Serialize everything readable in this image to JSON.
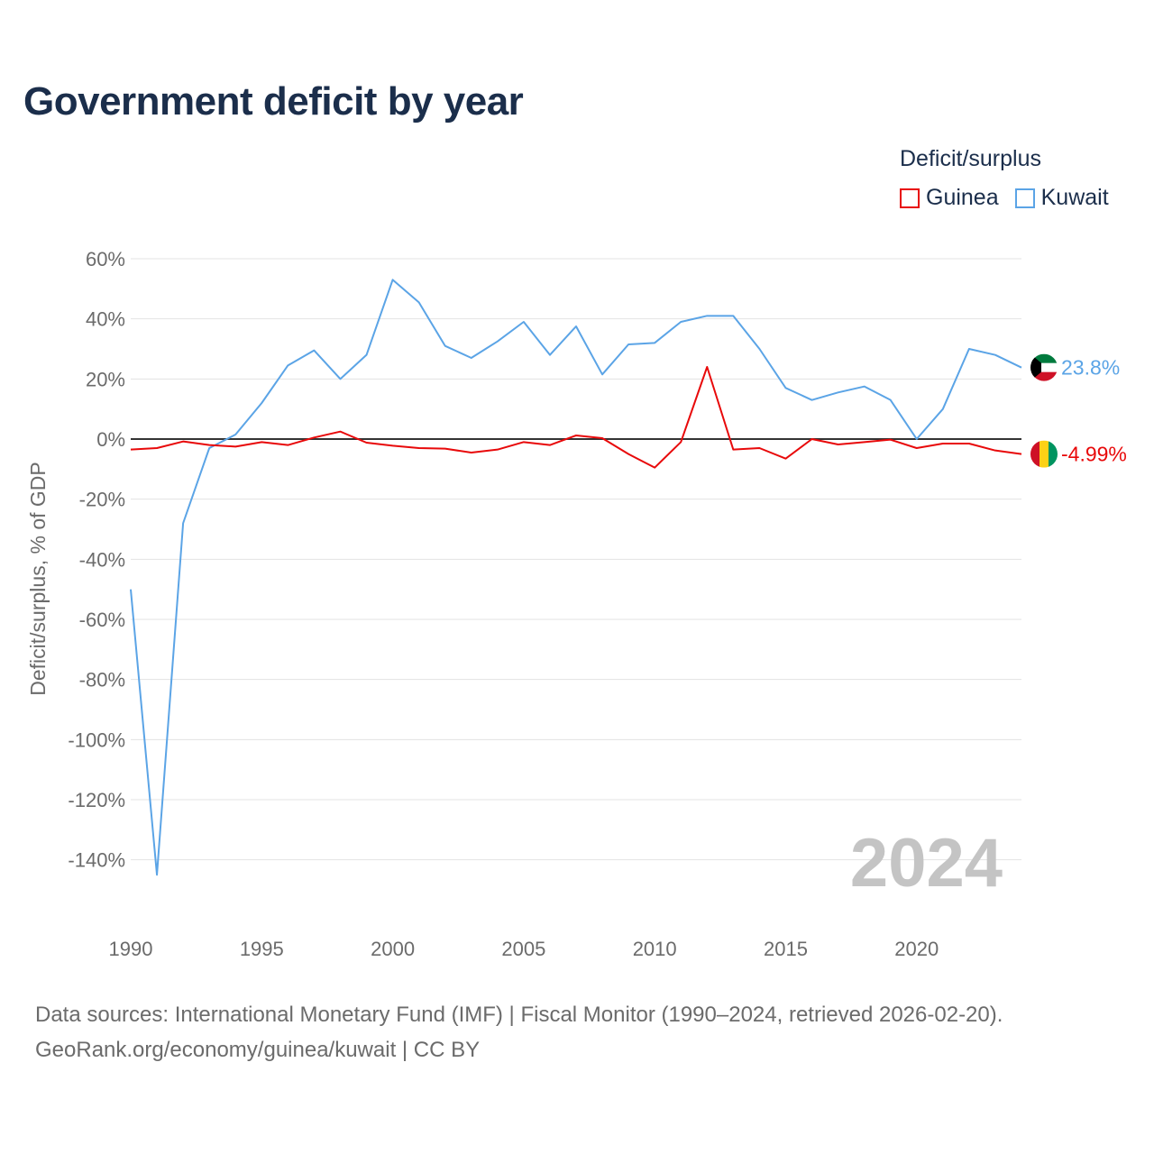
{
  "title": "Government deficit by year",
  "legend": {
    "title": "Deficit/surplus",
    "items": [
      {
        "label": "Guinea",
        "color": "#e8090a"
      },
      {
        "label": "Kuwait",
        "color": "#5ba4e6"
      }
    ]
  },
  "footer": {
    "sources": "Data sources: International Monetary Fund (IMF) | Fiscal Monitor (1990–2024, retrieved 2026-02-20).",
    "credit": "GeoRank.org/economy/guinea/kuwait | CC BY"
  },
  "chart_data": {
    "type": "line",
    "ylabel": "Deficit/surplus, % of GDP",
    "xlabel": "",
    "year_watermark": "2024",
    "xlim": [
      1990,
      2024
    ],
    "ylim": [
      -150,
      60
    ],
    "yticks": [
      60,
      40,
      20,
      0,
      -20,
      -40,
      -60,
      -80,
      -100,
      -120,
      -140
    ],
    "ytick_labels": [
      "60%",
      "40%",
      "20%",
      "0%",
      "-20%",
      "-40%",
      "-60%",
      "-80%",
      "-100%",
      "-120%",
      "-140%"
    ],
    "xticks": [
      1990,
      1995,
      2000,
      2005,
      2010,
      2015,
      2020
    ],
    "xtick_labels": [
      "1990",
      "1995",
      "2000",
      "2005",
      "2010",
      "2015",
      "2020"
    ],
    "x": [
      1990,
      1991,
      1992,
      1993,
      1994,
      1995,
      1996,
      1997,
      1998,
      1999,
      2000,
      2001,
      2002,
      2003,
      2004,
      2005,
      2006,
      2007,
      2008,
      2009,
      2010,
      2011,
      2012,
      2013,
      2014,
      2015,
      2016,
      2017,
      2018,
      2019,
      2020,
      2021,
      2022,
      2023,
      2024
    ],
    "series": [
      {
        "name": "Kuwait",
        "color": "#5ba4e6",
        "end_label": "23.8%",
        "values": [
          -50,
          -145,
          -28,
          -3,
          1.5,
          12,
          24.5,
          29.5,
          20,
          28,
          53,
          45.5,
          31,
          27,
          32.5,
          39,
          28,
          37.5,
          21.5,
          31.5,
          32,
          39,
          41,
          41,
          30,
          17,
          13,
          15.5,
          17.5,
          13,
          0,
          10,
          30,
          28,
          23.8
        ]
      },
      {
        "name": "Guinea",
        "color": "#e8090a",
        "end_label": "-4.99%",
        "values": [
          -3.5,
          -3,
          -0.8,
          -2,
          -2.5,
          -1,
          -2,
          0.5,
          2.5,
          -1.2,
          -2.2,
          -3,
          -3.2,
          -4.5,
          -3.5,
          -1,
          -2,
          1.2,
          0.3,
          -5,
          -9.5,
          -1,
          24,
          -3.5,
          -3,
          -6.5,
          0,
          -1.8,
          -1,
          -0.2,
          -3,
          -1.5,
          -1.5,
          -3.8,
          -4.99
        ]
      }
    ],
    "flags": {
      "Kuwait": {
        "colors": [
          "#007a3d",
          "#ffffff",
          "#ce1126",
          "#000000"
        ]
      },
      "Guinea": {
        "colors": [
          "#ce1126",
          "#fcd116",
          "#009460"
        ]
      }
    }
  }
}
